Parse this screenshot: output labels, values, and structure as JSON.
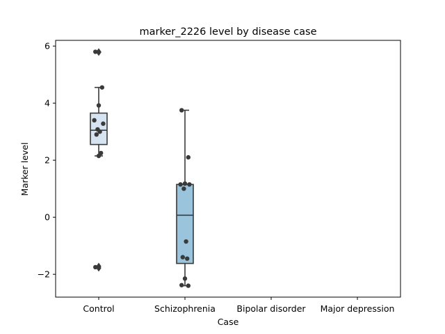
{
  "chart_data": {
    "type": "box",
    "title": "marker_2226 level by disease case",
    "xlabel": "Case",
    "ylabel": "Marker level",
    "categories": [
      "Control",
      "Schizophrenia",
      "Bipolar disorder",
      "Major depression"
    ],
    "ylim": [
      -2.8,
      6.2
    ],
    "yticks": [
      -2,
      0,
      2,
      4,
      6
    ],
    "ytick_labels": [
      "−2",
      "0",
      "2",
      "4",
      "6"
    ],
    "grid": false,
    "legend": "none",
    "boxes": [
      {
        "category": "Control",
        "q1": 2.55,
        "median": 3.05,
        "q3": 3.65,
        "whisker_low": 2.15,
        "whisker_high": 4.55,
        "outliers": [
          5.8,
          5.78,
          -1.72,
          -1.78
        ],
        "points": [
          5.8,
          4.55,
          3.92,
          3.4,
          3.28,
          3.08,
          3.0,
          2.9,
          2.25,
          2.15,
          -1.75
        ],
        "color": "#d6e3f0"
      },
      {
        "category": "Schizophrenia",
        "q1": -1.62,
        "median": 0.07,
        "q3": 1.15,
        "whisker_low": -2.4,
        "whisker_high": 3.75,
        "outliers": [],
        "points": [
          3.75,
          2.1,
          1.18,
          1.15,
          1.15,
          1.0,
          -0.85,
          -1.4,
          -1.45,
          -2.15,
          -2.38,
          -2.4
        ],
        "color": "#9ac4dc"
      },
      {
        "category": "Bipolar disorder",
        "q1": null,
        "median": null,
        "q3": null,
        "whisker_low": null,
        "whisker_high": null,
        "outliers": [],
        "points": [],
        "color": "#5a9fcf"
      },
      {
        "category": "Major depression",
        "q1": null,
        "median": null,
        "q3": null,
        "whisker_low": null,
        "whisker_high": null,
        "outliers": [],
        "points": [],
        "color": "#2c6fad"
      }
    ],
    "style": {
      "line_color": "#3a3a3a",
      "point_color": "#3a3a3a",
      "axis_color": "#000000"
    }
  }
}
